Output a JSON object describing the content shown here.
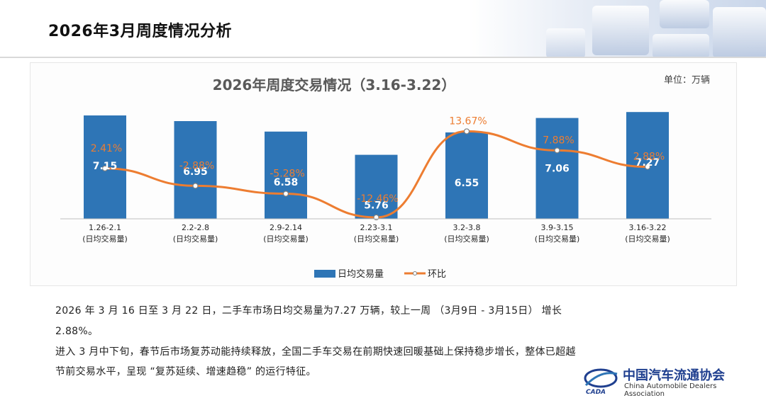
{
  "page_title": "2026年3月周度情况分析",
  "chart_data": {
    "type": "bar",
    "title": "2026年周度交易情况（3.16-3.22）",
    "unit": "单位：万辆",
    "categories": [
      "1.26-2.1",
      "2.2-2.8",
      "2.9-2.14",
      "2.23-3.1",
      "3.2-3.8",
      "3.9-3.15",
      "3.16-3.22"
    ],
    "category_sublabel": "(日均交易量)",
    "series": [
      {
        "name": "日均交易量",
        "type": "bar",
        "values": [
          7.15,
          6.95,
          6.58,
          5.76,
          6.55,
          7.06,
          7.27
        ],
        "labels": [
          "7.15",
          "6.95",
          "6.58",
          "5.76",
          "6.55",
          "7.06",
          "7.27"
        ]
      },
      {
        "name": "环比",
        "type": "line",
        "values": [
          2.41,
          -2.88,
          -5.28,
          -12.46,
          13.67,
          7.88,
          2.88
        ],
        "labels": [
          "2.41%",
          "-2.88%",
          "-5.28%",
          "-12.46%",
          "13.67%",
          "7.88%",
          "2.88%"
        ]
      }
    ],
    "legend_position": "bottom",
    "grid": false,
    "colors": {
      "bar": "#2e75b6",
      "line": "#ed7d31",
      "line_label": "#ed7d31",
      "bar_label": "#ffffff"
    }
  },
  "paragraphs": [
    "2026 年 3 月 16 日至 3 月 22 日，二手车市场日均交易量为7.27 万辆，较上一周 （3月9日 - 3月15日） 增长",
    "2.88%。",
    "进入 3 月中下旬，春节后市场复苏动能持续释放，全国二手车交易在前期快速回暖基础上保持稳步增长，整体已超越",
    "节前交易水平，呈现 “复苏延续、增速趋稳” 的运行特征。"
  ],
  "logo": {
    "cn": "中国汽车流通协会",
    "en": "China Automobile Dealers Association",
    "mark": "CADA"
  }
}
